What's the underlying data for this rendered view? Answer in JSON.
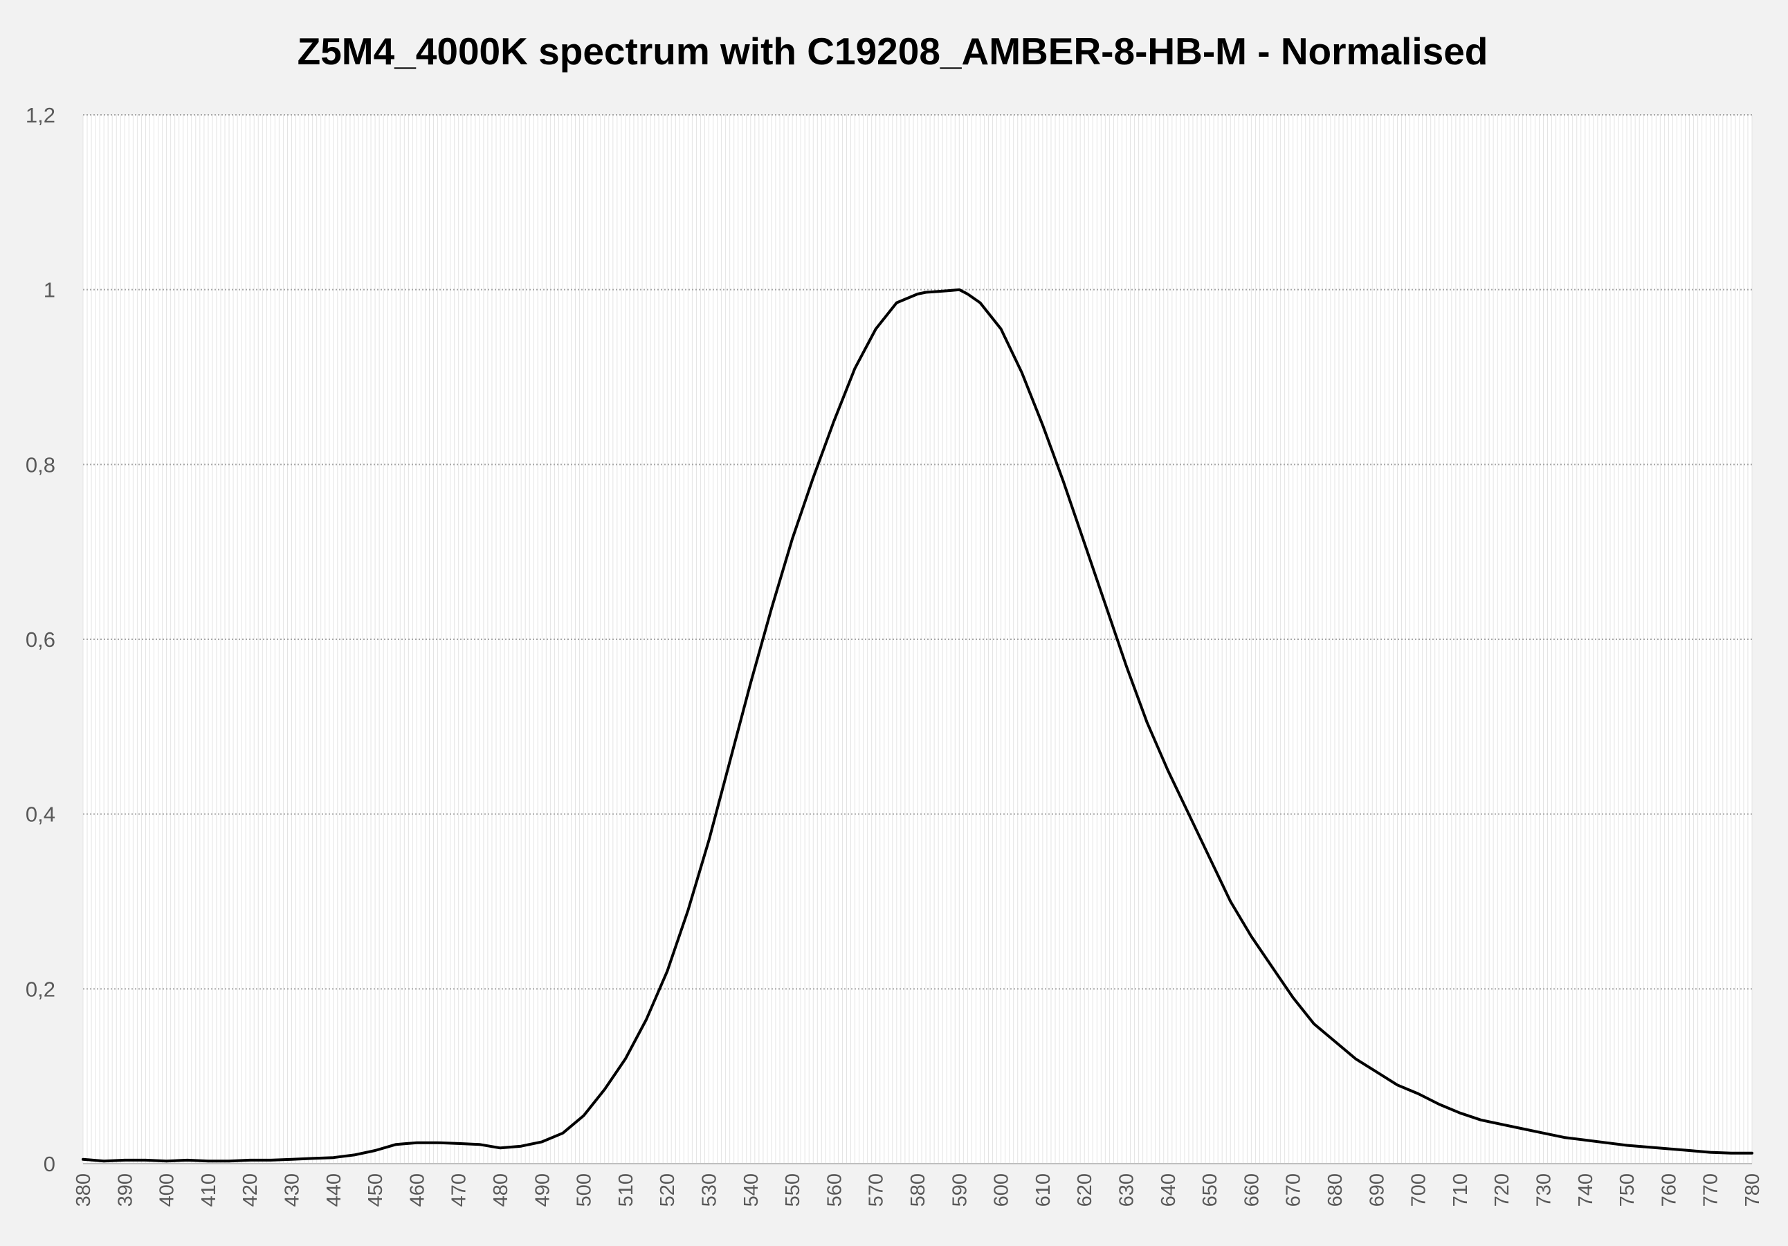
{
  "chart_data": {
    "type": "line",
    "title": "Z5M4_4000K spectrum with C19208_AMBER-8-HB-M - Normalised",
    "xlabel": "",
    "ylabel": "",
    "xlim": [
      380,
      780
    ],
    "ylim": [
      0,
      1.2
    ],
    "x_ticks": [
      "380",
      "390",
      "400",
      "410",
      "420",
      "430",
      "440",
      "450",
      "460",
      "470",
      "480",
      "490",
      "500",
      "510",
      "520",
      "530",
      "540",
      "550",
      "560",
      "570",
      "580",
      "590",
      "600",
      "610",
      "620",
      "630",
      "640",
      "650",
      "660",
      "670",
      "680",
      "690",
      "700",
      "710",
      "720",
      "730",
      "740",
      "750",
      "760",
      "770",
      "780"
    ],
    "y_ticks": [
      "0",
      "0,2",
      "0,4",
      "0,6",
      "0,8",
      "1",
      "1,2"
    ],
    "grid": true,
    "legend": "none",
    "series": [
      {
        "color": "#000000",
        "x": [
          380,
          385,
          390,
          395,
          400,
          405,
          410,
          415,
          420,
          425,
          430,
          435,
          440,
          445,
          450,
          455,
          460,
          465,
          470,
          475,
          480,
          485,
          490,
          495,
          500,
          505,
          510,
          515,
          520,
          525,
          530,
          535,
          540,
          545,
          550,
          555,
          560,
          565,
          570,
          575,
          580,
          582,
          585,
          588,
          590,
          592,
          595,
          600,
          605,
          610,
          615,
          620,
          625,
          630,
          635,
          640,
          645,
          650,
          655,
          660,
          665,
          670,
          675,
          680,
          685,
          690,
          695,
          700,
          705,
          710,
          715,
          720,
          725,
          730,
          735,
          740,
          745,
          750,
          755,
          760,
          765,
          770,
          775,
          780
        ],
        "values": [
          0.005,
          0.003,
          0.004,
          0.004,
          0.003,
          0.004,
          0.003,
          0.003,
          0.004,
          0.004,
          0.005,
          0.006,
          0.007,
          0.01,
          0.015,
          0.022,
          0.024,
          0.024,
          0.023,
          0.022,
          0.018,
          0.02,
          0.025,
          0.035,
          0.055,
          0.085,
          0.12,
          0.165,
          0.22,
          0.29,
          0.37,
          0.46,
          0.55,
          0.635,
          0.715,
          0.785,
          0.85,
          0.91,
          0.955,
          0.985,
          0.995,
          0.997,
          0.998,
          0.999,
          1.0,
          0.995,
          0.985,
          0.955,
          0.905,
          0.845,
          0.78,
          0.71,
          0.64,
          0.57,
          0.505,
          0.45,
          0.4,
          0.35,
          0.3,
          0.26,
          0.225,
          0.19,
          0.16,
          0.14,
          0.12,
          0.105,
          0.09,
          0.08,
          0.068,
          0.058,
          0.05,
          0.045,
          0.04,
          0.035,
          0.03,
          0.027,
          0.024,
          0.021,
          0.019,
          0.017,
          0.015,
          0.013,
          0.012,
          0.012
        ]
      }
    ]
  }
}
